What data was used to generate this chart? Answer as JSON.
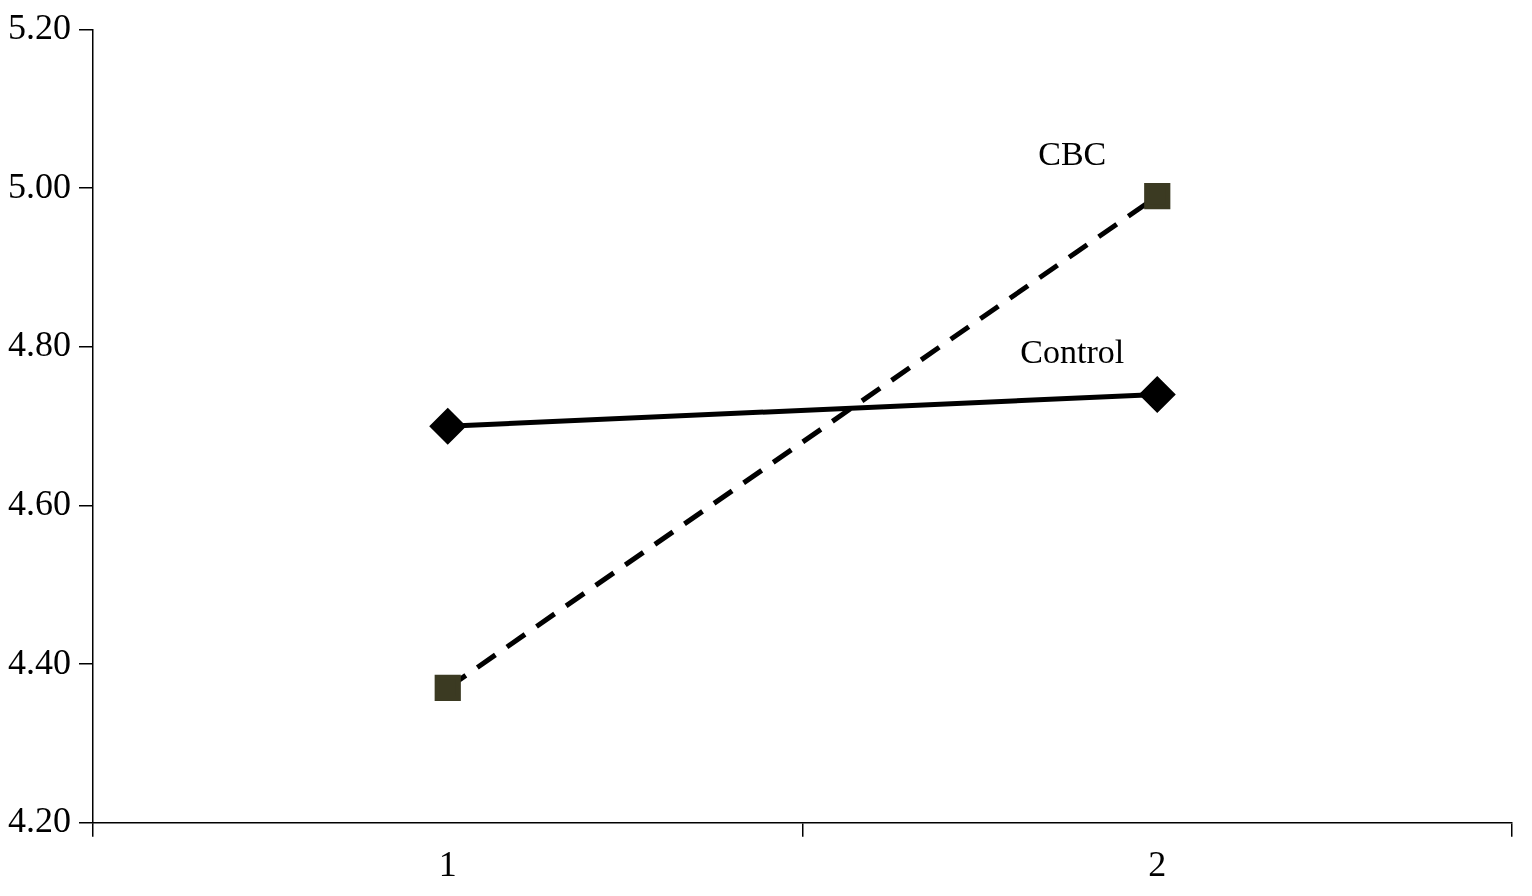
{
  "chart_data": {
    "type": "line",
    "categories": [
      "1",
      "2"
    ],
    "series": [
      {
        "name": "Control",
        "color": "#000000",
        "values": [
          4.7,
          4.74
        ],
        "marker": "diamond",
        "line_style": "solid"
      },
      {
        "name": "CBC",
        "color": "#3b3a22",
        "values": [
          4.37,
          4.99
        ],
        "marker": "square",
        "line_style": "dashed"
      }
    ],
    "ylim": [
      4.2,
      5.2
    ],
    "yticks": [
      {
        "value": 4.2,
        "label": "4.20"
      },
      {
        "value": 4.4,
        "label": "4.40"
      },
      {
        "value": 4.6,
        "label": "4.60"
      },
      {
        "value": 4.8,
        "label": "4.80"
      },
      {
        "value": 5.0,
        "label": "5.00"
      },
      {
        "value": 5.2,
        "label": "5.20"
      }
    ],
    "grid": false,
    "legend": false
  }
}
